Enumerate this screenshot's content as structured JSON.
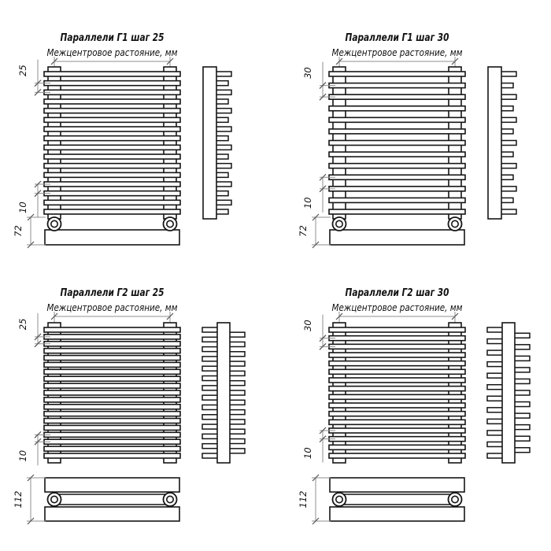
{
  "drawing": {
    "background": "#ffffff",
    "line_color": "#151515",
    "dim_line_color": "#8f8f8f",
    "text_color": "#111111",
    "units_note": "мм"
  },
  "diagrams": [
    {
      "id": "parallels-g1-step-25",
      "quadrant": "top-left",
      "title": "Параллели Г1 шаг 25",
      "subtitle": "Межцентровое растояние, мм",
      "step_label": "25",
      "gap_label": "10",
      "depth_label": "72",
      "variant": "G1",
      "bars": 16,
      "side_fins": 16
    },
    {
      "id": "parallels-g1-step-30",
      "quadrant": "top-right",
      "title": "Параллели Г1 шаг 30",
      "subtitle": "Межцентровое растояние, мм",
      "step_label": "30",
      "gap_label": "10",
      "depth_label": "72",
      "variant": "G1",
      "bars": 13,
      "side_fins": 13
    },
    {
      "id": "parallels-g2-step-25",
      "quadrant": "bottom-left",
      "title": "Параллели Г2 шаг 25",
      "subtitle": "Межцентровое растояние, мм",
      "step_label": "25",
      "gap_label": "10",
      "depth_label": "112",
      "variant": "G2",
      "bars": 19,
      "side_fins": 14
    },
    {
      "id": "parallels-g2-step-30",
      "quadrant": "bottom-right",
      "title": "Параллели Г2 шаг 30",
      "subtitle": "Межцентровое растояние, мм",
      "step_label": "30",
      "gap_label": "10",
      "depth_label": "112",
      "variant": "G2",
      "bars": 16,
      "side_fins": 12
    }
  ]
}
